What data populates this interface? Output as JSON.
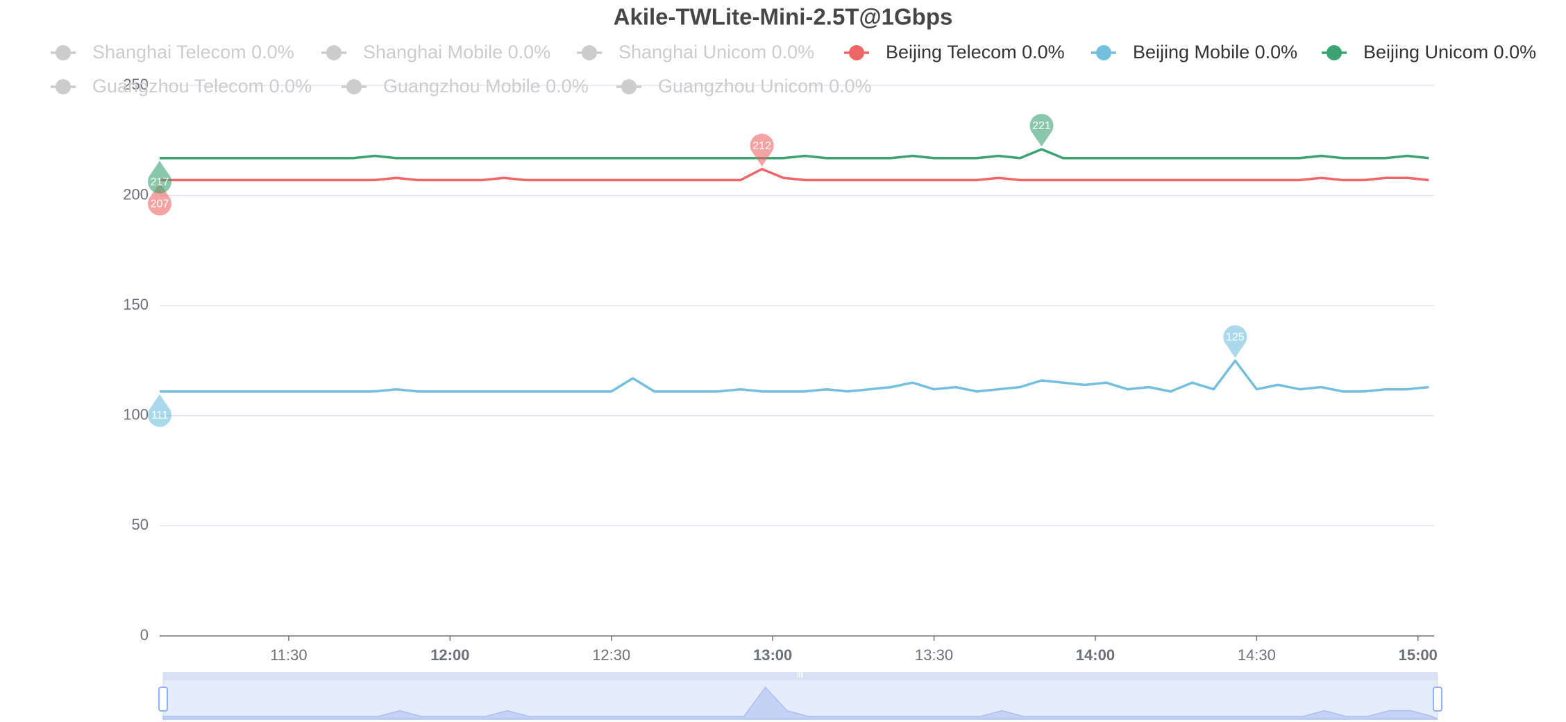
{
  "chart_data": {
    "type": "line",
    "title": "Akile-TWLite-Mini-2.5T@1Gbps",
    "x": [
      "11:06",
      "11:10",
      "11:14",
      "11:18",
      "11:22",
      "11:26",
      "11:30",
      "11:34",
      "11:38",
      "11:42",
      "11:46",
      "11:50",
      "11:54",
      "11:58",
      "12:02",
      "12:06",
      "12:10",
      "12:14",
      "12:18",
      "12:22",
      "12:26",
      "12:30",
      "12:34",
      "12:38",
      "12:42",
      "12:46",
      "12:50",
      "12:54",
      "12:58",
      "13:02",
      "13:06",
      "13:10",
      "13:14",
      "13:18",
      "13:22",
      "13:26",
      "13:30",
      "13:34",
      "13:38",
      "13:42",
      "13:46",
      "13:50",
      "13:54",
      "13:58",
      "14:02",
      "14:06",
      "14:10",
      "14:14",
      "14:18",
      "14:22",
      "14:26",
      "14:30",
      "14:34",
      "14:38",
      "14:42",
      "14:46",
      "14:50",
      "14:54",
      "14:58",
      "15:02"
    ],
    "xlim": [
      "11:06",
      "15:03"
    ],
    "xticks": [
      "11:30",
      "12:00",
      "12:30",
      "13:00",
      "13:30",
      "14:00",
      "14:30",
      "15:00"
    ],
    "ylim": [
      0,
      250
    ],
    "yticks": [
      0,
      50,
      100,
      150,
      200,
      250
    ],
    "grid": true,
    "series": [
      {
        "name": "Shanghai Telecom 0.0%",
        "color": "#cccccc",
        "visible": false
      },
      {
        "name": "Shanghai Mobile 0.0%",
        "color": "#cccccc",
        "visible": false
      },
      {
        "name": "Shanghai Unicom 0.0%",
        "color": "#cccccc",
        "visible": false
      },
      {
        "name": "Beijing Telecom 0.0%",
        "color": "#ee6666",
        "visible": true,
        "values": [
          207,
          207,
          207,
          207,
          207,
          207,
          207,
          207,
          207,
          207,
          207,
          208,
          207,
          207,
          207,
          207,
          208,
          207,
          207,
          207,
          207,
          207,
          207,
          207,
          207,
          207,
          207,
          207,
          212,
          208,
          207,
          207,
          207,
          207,
          207,
          207,
          207,
          207,
          207,
          208,
          207,
          207,
          207,
          207,
          207,
          207,
          207,
          207,
          207,
          207,
          207,
          207,
          207,
          207,
          208,
          207,
          207,
          208,
          208,
          207
        ],
        "mark_points": [
          {
            "kind": "max",
            "x": "12:58",
            "value": 212
          },
          {
            "kind": "min",
            "x": "11:06",
            "value": 207
          }
        ]
      },
      {
        "name": "Beijing Mobile 0.0%",
        "color": "#73c0de",
        "visible": true,
        "values": [
          111,
          111,
          111,
          111,
          111,
          111,
          111,
          111,
          111,
          111,
          111,
          112,
          111,
          111,
          111,
          111,
          111,
          111,
          111,
          111,
          111,
          111,
          117,
          111,
          111,
          111,
          111,
          112,
          111,
          111,
          111,
          112,
          111,
          112,
          113,
          115,
          112,
          113,
          111,
          112,
          113,
          116,
          115,
          114,
          115,
          112,
          113,
          111,
          115,
          112,
          125,
          112,
          114,
          112,
          113,
          111,
          111,
          112,
          112,
          113
        ],
        "mark_points": [
          {
            "kind": "max",
            "x": "14:26",
            "value": 125
          },
          {
            "kind": "min",
            "x": "11:06",
            "value": 111
          }
        ]
      },
      {
        "name": "Beijing Unicom 0.0%",
        "color": "#3ba272",
        "visible": true,
        "values": [
          217,
          217,
          217,
          217,
          217,
          217,
          217,
          217,
          217,
          217,
          218,
          217,
          217,
          217,
          217,
          217,
          217,
          217,
          217,
          217,
          217,
          217,
          217,
          217,
          217,
          217,
          217,
          217,
          217,
          217,
          218,
          217,
          217,
          217,
          217,
          218,
          217,
          217,
          217,
          218,
          217,
          221,
          217,
          217,
          217,
          217,
          217,
          217,
          217,
          217,
          217,
          217,
          217,
          217,
          218,
          217,
          217,
          217,
          218,
          217
        ],
        "mark_points": [
          {
            "kind": "max",
            "x": "13:50",
            "value": 221
          },
          {
            "kind": "min",
            "x": "11:06",
            "value": 217
          }
        ]
      },
      {
        "name": "Guangzhou Telecom 0.0%",
        "color": "#cccccc",
        "visible": false
      },
      {
        "name": "Guangzhou Mobile 0.0%",
        "color": "#cccccc",
        "visible": false
      },
      {
        "name": "Guangzhou Unicom 0.0%",
        "color": "#cccccc",
        "visible": false
      }
    ]
  }
}
